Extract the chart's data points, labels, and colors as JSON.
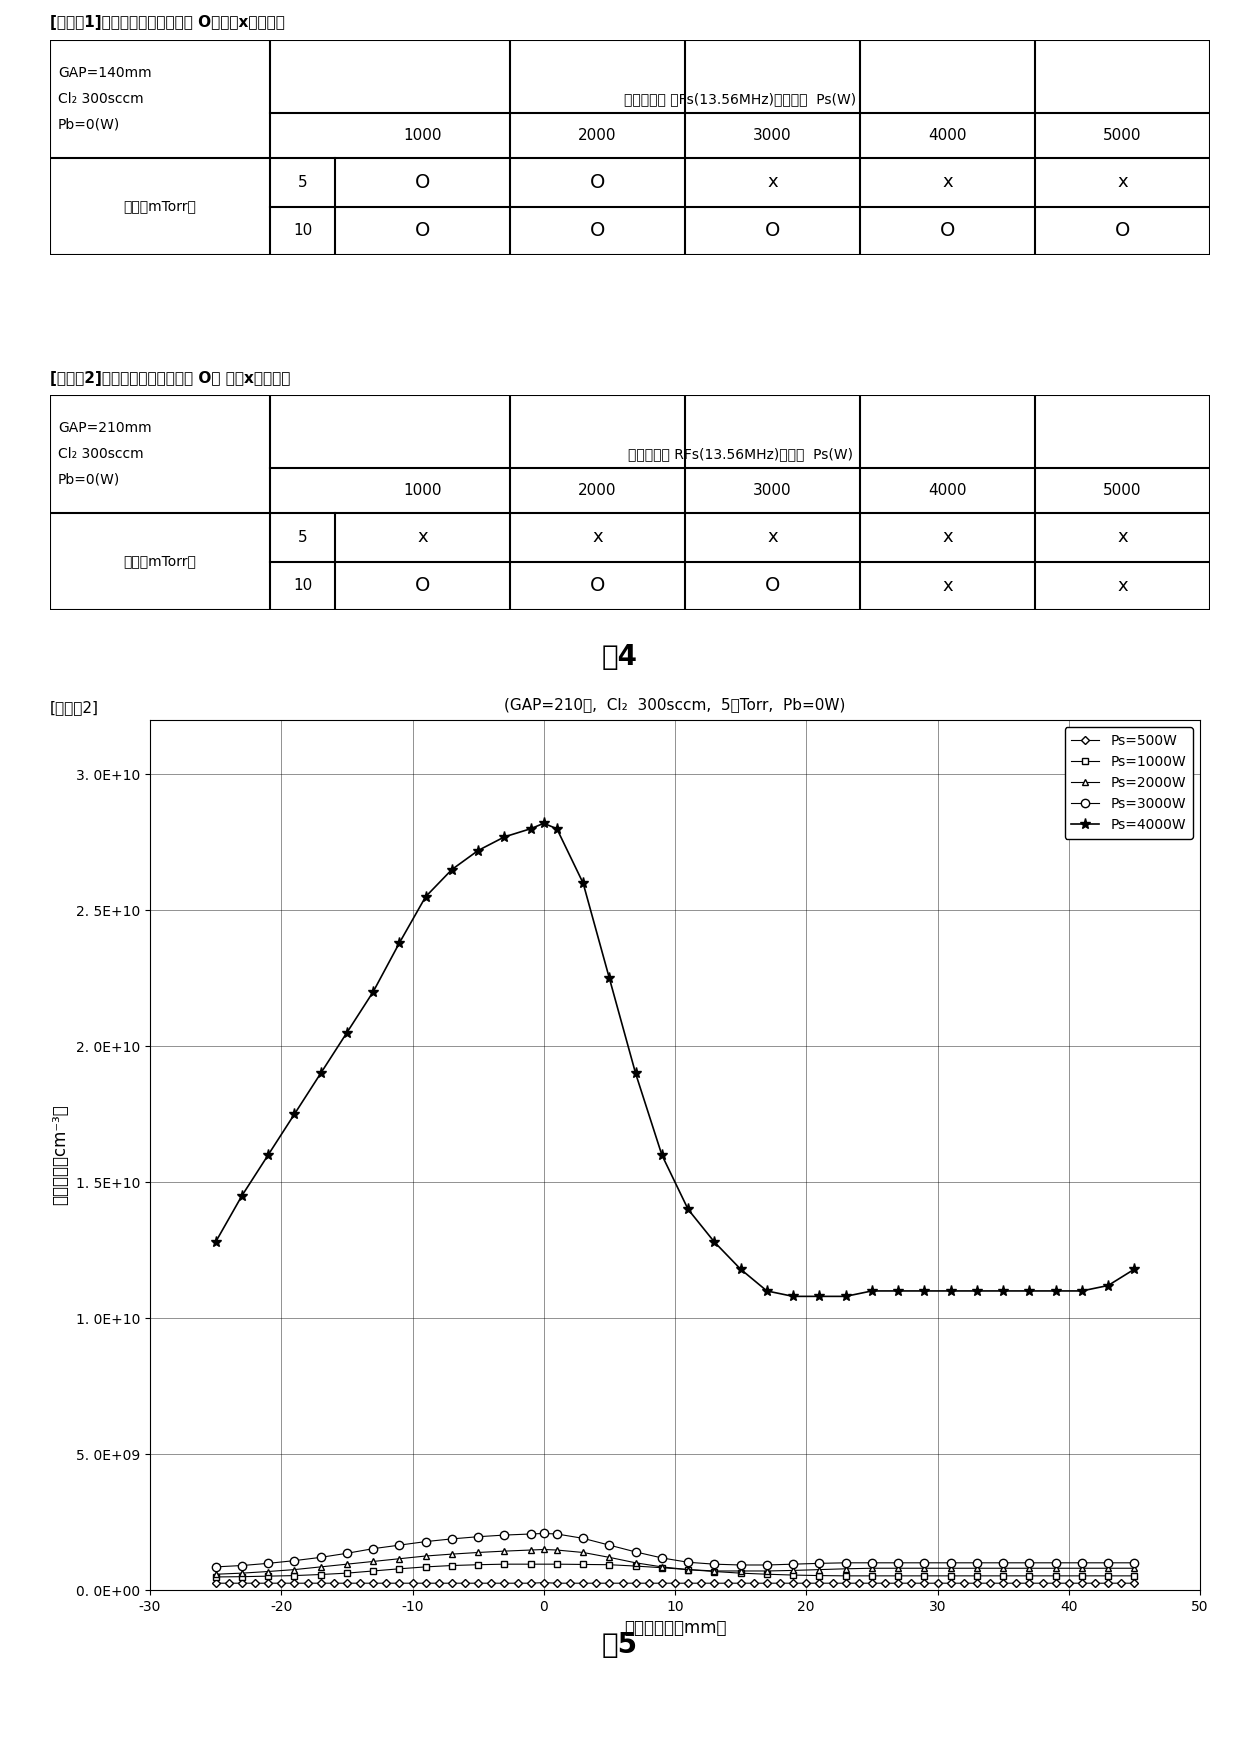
{
  "fig4_title": "图4",
  "fig5_title": "图5",
  "table1_title": "[比较例1]（等离子体密度均匀性 O：良好x：不好）",
  "table2_title": "[比较例2]（等离子体密度均匀性 O： 良好x：不好）",
  "table1_info": [
    "GAP=140mm",
    "Cl₂ 300sccm",
    "Pb=0(W)"
  ],
  "table2_info": [
    "GAP=210mm",
    "Cl₂ 300sccm",
    "Pb=0(W)"
  ],
  "table_header": "源用高频率 RFs(13.56MHz)的功率  Ps(W)",
  "table1_header_note": "源用高频率 「Fs(13.56MHz)」的功率  Ps(W)",
  "ps_values": [
    1000,
    2000,
    3000,
    4000,
    5000
  ],
  "pressure_label": "压力（mTorr）",
  "pressure_rows": [
    5,
    10
  ],
  "table1_data": [
    [
      "O",
      "O",
      "x",
      "x",
      "x"
    ],
    [
      "O",
      "O",
      "O",
      "O",
      "O"
    ]
  ],
  "table2_data": [
    [
      "x",
      "x",
      "x",
      "x",
      "x"
    ],
    [
      "O",
      "O",
      "O",
      "x",
      "x"
    ]
  ],
  "plot_label": "[比较例2]",
  "plot_subtitle": "(GAP=210㎜,  Cl₂  300sccm,  5㎜Torr,  Pb=0W)",
  "ylabel": "电子密度（cm⁻³）",
  "xlabel": "径向的位置（mm）",
  "xlim": [
    -30,
    50
  ],
  "ylim": [
    0,
    32000000000.0
  ],
  "yticks": [
    0,
    5000000000.0,
    10000000000.0,
    15000000000.0,
    20000000000.0,
    25000000000.0,
    30000000000.0
  ],
  "ytick_labels": [
    "0. 0E+00",
    "5. 0E+09",
    "1. 0E+10",
    "1. 5E+10",
    "2. 0E+10",
    "2. 5E+10",
    "3. 0E+10"
  ],
  "xticks": [
    -30,
    -20,
    -10,
    0,
    10,
    20,
    30,
    40,
    50
  ],
  "legend_entries": [
    "Ps=500W",
    "Ps=1000W",
    "Ps=2000W",
    "Ps=3000W",
    "Ps=4000W"
  ],
  "series_500W_x": [
    -25,
    -24,
    -23,
    -22,
    -21,
    -20,
    -19,
    -18,
    -17,
    -16,
    -15,
    -14,
    -13,
    -12,
    -11,
    -10,
    -9,
    -8,
    -7,
    -6,
    -5,
    -4,
    -3,
    -2,
    -1,
    0,
    1,
    2,
    3,
    4,
    5,
    6,
    7,
    8,
    9,
    10,
    11,
    12,
    13,
    14,
    15,
    16,
    17,
    18,
    19,
    20,
    21,
    22,
    23,
    24,
    25,
    26,
    27,
    28,
    29,
    30,
    31,
    32,
    33,
    34,
    35,
    36,
    37,
    38,
    39,
    40,
    41,
    42,
    43,
    44,
    45
  ],
  "series_500W_y": [
    250000000.0,
    250000000.0,
    250000000.0,
    250000000.0,
    250000000.0,
    250000000.0,
    250000000.0,
    250000000.0,
    250000000.0,
    250000000.0,
    250000000.0,
    250000000.0,
    250000000.0,
    250000000.0,
    250000000.0,
    250000000.0,
    250000000.0,
    250000000.0,
    250000000.0,
    250000000.0,
    250000000.0,
    250000000.0,
    250000000.0,
    250000000.0,
    250000000.0,
    270000000.0,
    250000000.0,
    250000000.0,
    250000000.0,
    250000000.0,
    250000000.0,
    250000000.0,
    250000000.0,
    250000000.0,
    250000000.0,
    250000000.0,
    250000000.0,
    250000000.0,
    250000000.0,
    250000000.0,
    250000000.0,
    250000000.0,
    250000000.0,
    250000000.0,
    250000000.0,
    250000000.0,
    250000000.0,
    250000000.0,
    250000000.0,
    250000000.0,
    250000000.0,
    250000000.0,
    250000000.0,
    250000000.0,
    250000000.0,
    250000000.0,
    250000000.0,
    250000000.0,
    250000000.0,
    250000000.0,
    250000000.0,
    250000000.0,
    250000000.0,
    250000000.0,
    250000000.0,
    250000000.0,
    250000000.0,
    250000000.0,
    250000000.0,
    250000000.0,
    250000000.0
  ],
  "series_1000W_x": [
    -25,
    -23,
    -21,
    -19,
    -17,
    -15,
    -13,
    -11,
    -9,
    -7,
    -5,
    -3,
    -1,
    1,
    3,
    5,
    7,
    9,
    11,
    13,
    15,
    17,
    19,
    21,
    23,
    25,
    27,
    29,
    31,
    33,
    35,
    37,
    39,
    41,
    43,
    45
  ],
  "series_1000W_y": [
    480000000.0,
    490000000.0,
    510000000.0,
    530000000.0,
    570000000.0,
    620000000.0,
    700000000.0,
    780000000.0,
    850000000.0,
    900000000.0,
    930000000.0,
    950000000.0,
    950000000.0,
    950000000.0,
    940000000.0,
    930000000.0,
    880000000.0,
    820000000.0,
    750000000.0,
    680000000.0,
    620000000.0,
    580000000.0,
    550000000.0,
    530000000.0,
    520000000.0,
    520000000.0,
    520000000.0,
    520000000.0,
    520000000.0,
    520000000.0,
    520000000.0,
    520000000.0,
    520000000.0,
    520000000.0,
    520000000.0,
    520000000.0
  ],
  "series_2000W_x": [
    -25,
    -23,
    -21,
    -19,
    -17,
    -15,
    -13,
    -11,
    -9,
    -7,
    -5,
    -3,
    -1,
    0,
    1,
    3,
    5,
    7,
    9,
    11,
    13,
    15,
    17,
    19,
    21,
    23,
    25,
    27,
    29,
    31,
    33,
    35,
    37,
    39,
    41,
    43,
    45
  ],
  "series_2000W_y": [
    580000000.0,
    620000000.0,
    680000000.0,
    750000000.0,
    850000000.0,
    950000000.0,
    1050000000.0,
    1150000000.0,
    1250000000.0,
    1320000000.0,
    1380000000.0,
    1430000000.0,
    1470000000.0,
    1490000000.0,
    1470000000.0,
    1380000000.0,
    1200000000.0,
    1000000000.0,
    850000000.0,
    750000000.0,
    700000000.0,
    700000000.0,
    700000000.0,
    720000000.0,
    750000000.0,
    780000000.0,
    800000000.0,
    800000000.0,
    800000000.0,
    800000000.0,
    800000000.0,
    800000000.0,
    800000000.0,
    800000000.0,
    800000000.0,
    800000000.0,
    800000000.0
  ],
  "series_3000W_x": [
    -25,
    -23,
    -21,
    -19,
    -17,
    -15,
    -13,
    -11,
    -9,
    -7,
    -5,
    -3,
    -1,
    0,
    1,
    3,
    5,
    7,
    9,
    11,
    13,
    15,
    17,
    19,
    21,
    23,
    25,
    27,
    29,
    31,
    33,
    35,
    37,
    39,
    41,
    43,
    45
  ],
  "series_3000W_y": [
    850000000.0,
    900000000.0,
    980000000.0,
    1080000000.0,
    1200000000.0,
    1350000000.0,
    1520000000.0,
    1650000000.0,
    1780000000.0,
    1880000000.0,
    1960000000.0,
    2020000000.0,
    2060000000.0,
    2080000000.0,
    2060000000.0,
    1900000000.0,
    1650000000.0,
    1400000000.0,
    1180000000.0,
    1020000000.0,
    950000000.0,
    920000000.0,
    920000000.0,
    950000000.0,
    980000000.0,
    1000000000.0,
    1000000000.0,
    1000000000.0,
    1000000000.0,
    1000000000.0,
    1000000000.0,
    1000000000.0,
    1000000000.0,
    1000000000.0,
    1000000000.0,
    1000000000.0,
    1000000000.0
  ],
  "series_4000W_x": [
    -25,
    -23,
    -21,
    -19,
    -17,
    -15,
    -13,
    -11,
    -9,
    -7,
    -5,
    -3,
    -1,
    0,
    1,
    3,
    5,
    7,
    9,
    11,
    13,
    15,
    17,
    19,
    21,
    23,
    25,
    27,
    29,
    31,
    33,
    35,
    37,
    39,
    41,
    43,
    45
  ],
  "series_4000W_y": [
    12800000000.0,
    14500000000.0,
    16000000000.0,
    17500000000.0,
    19000000000.0,
    20500000000.0,
    22000000000.0,
    23800000000.0,
    25500000000.0,
    26500000000.0,
    27200000000.0,
    27700000000.0,
    28000000000.0,
    28200000000.0,
    28000000000.0,
    26000000000.0,
    22500000000.0,
    19000000000.0,
    16000000000.0,
    14000000000.0,
    12800000000.0,
    11800000000.0,
    11000000000.0,
    10800000000.0,
    10800000000.0,
    10800000000.0,
    11000000000.0,
    11000000000.0,
    11000000000.0,
    11000000000.0,
    11000000000.0,
    11000000000.0,
    11000000000.0,
    11000000000.0,
    11000000000.0,
    11200000000.0,
    11800000000.0
  ]
}
